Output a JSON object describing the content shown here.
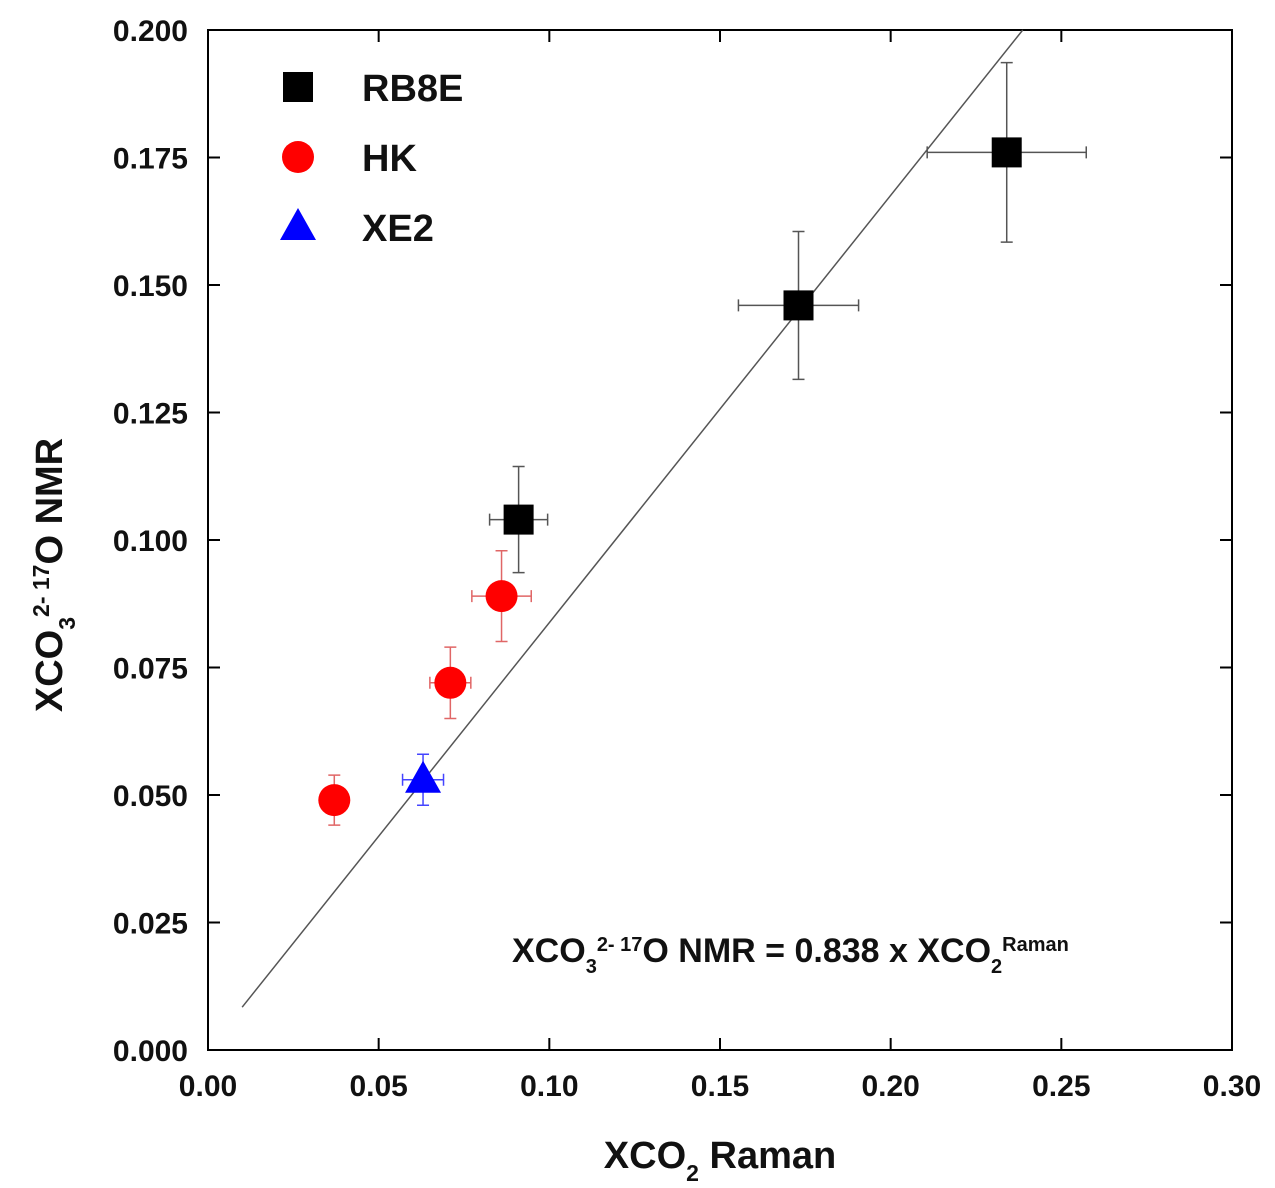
{
  "chart_data": {
    "type": "scatter",
    "x_label": [
      {
        "text": "XCO"
      },
      {
        "text": "2",
        "shift": "sub"
      },
      {
        "text": " Raman"
      }
    ],
    "y_label": [
      {
        "text": "XCO"
      },
      {
        "text": "3",
        "shift": "sub"
      },
      {
        "text": "2- 17",
        "shift": "super"
      },
      {
        "text": "O NMR"
      }
    ],
    "annotation": [
      {
        "text": "XCO"
      },
      {
        "text": "3",
        "shift": "sub"
      },
      {
        "text": "2- 17",
        "shift": "super"
      },
      {
        "text": "O NMR = 0.838 x XCO"
      },
      {
        "text": "2",
        "shift": "sub"
      },
      {
        "text": "Raman",
        "shift": "super"
      }
    ],
    "xlim": [
      0,
      0.3
    ],
    "ylim": [
      0,
      0.2
    ],
    "xticks": [
      {
        "value": 0,
        "label": "0.00"
      },
      {
        "value": 0.05,
        "label": "0.05"
      },
      {
        "value": 0.1,
        "label": "0.10"
      },
      {
        "value": 0.15,
        "label": "0.15"
      },
      {
        "value": 0.2,
        "label": "0.20"
      },
      {
        "value": 0.25,
        "label": "0.25"
      },
      {
        "value": 0.3,
        "label": "0.30"
      }
    ],
    "yticks": [
      {
        "value": 0,
        "label": "0.000"
      },
      {
        "value": 0.025,
        "label": "0.025"
      },
      {
        "value": 0.05,
        "label": "0.050"
      },
      {
        "value": 0.075,
        "label": "0.075"
      },
      {
        "value": 0.1,
        "label": "0.100"
      },
      {
        "value": 0.125,
        "label": "0.125"
      },
      {
        "value": 0.15,
        "label": "0.150"
      },
      {
        "value": 0.175,
        "label": "0.175"
      },
      {
        "value": 0.2,
        "label": "0.200"
      }
    ],
    "legend": "upper left",
    "series": [
      {
        "name": "RB8E",
        "color": "#000000",
        "err_color": "#555555",
        "marker": "square",
        "x": [
          0.091,
          0.173,
          0.234
        ],
        "values": [
          0.104,
          0.146,
          0.176
        ],
        "xerr": [
          0.0085,
          0.0176,
          0.0233
        ],
        "yerr": [
          0.0104,
          0.0145,
          0.0176
        ]
      },
      {
        "name": "HK",
        "color": "#ff0000",
        "err_color": "#e06666",
        "marker": "circle",
        "x": [
          0.037,
          0.071,
          0.086
        ],
        "values": [
          0.049,
          0.072,
          0.089
        ],
        "xerr": [
          0.003,
          0.006,
          0.0087
        ],
        "yerr": [
          0.0049,
          0.007,
          0.0089
        ]
      },
      {
        "name": "XE2",
        "color": "#0000ff",
        "err_color": "#4444ff",
        "marker": "triangle",
        "x": [
          0.063
        ],
        "values": [
          0.053
        ],
        "xerr": [
          0.006
        ],
        "yerr": [
          0.005
        ]
      }
    ],
    "fit_line": {
      "color": "#555555",
      "x": [
        0.01,
        0.2387
      ],
      "values": [
        0.0084,
        0.2
      ]
    }
  }
}
